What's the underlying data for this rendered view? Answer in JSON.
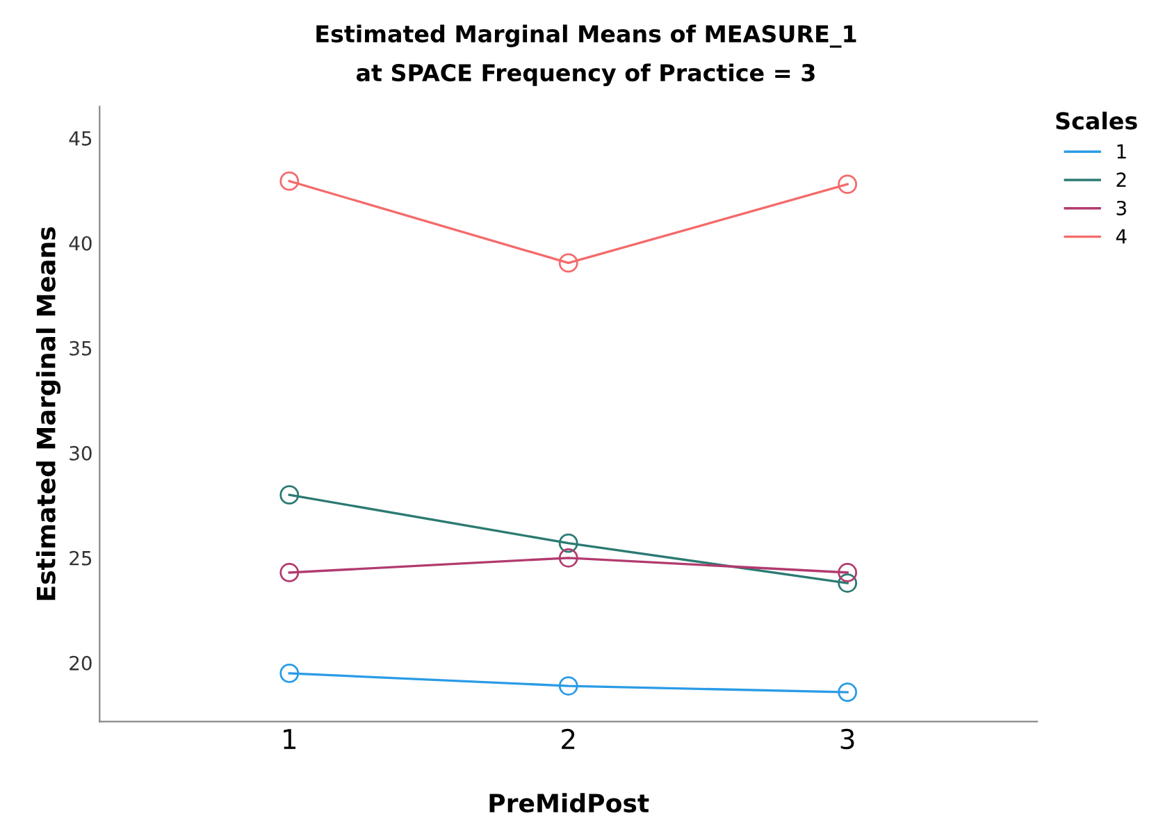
{
  "chart_data": {
    "type": "line",
    "title": "Estimated Marginal Means of MEASURE_1\nat SPACE Frequency of Practice = 3",
    "xlabel": "PreMidPost",
    "ylabel": "Estimated Marginal Means",
    "legend_title": "Scales",
    "categories": [
      "1",
      "2",
      "3"
    ],
    "series": [
      {
        "name": "1",
        "color": "#2a9be6",
        "values": [
          19.5,
          18.9,
          18.6
        ]
      },
      {
        "name": "2",
        "color": "#2b7a72",
        "values": [
          28.0,
          25.7,
          23.8
        ]
      },
      {
        "name": "3",
        "color": "#b23a6e",
        "values": [
          24.3,
          25.0,
          24.3
        ]
      },
      {
        "name": "4",
        "color": "#f46b6b",
        "values": [
          42.95,
          39.05,
          42.8
        ]
      }
    ],
    "ylim": [
      17.2,
      46.5
    ],
    "yticks": [
      20,
      25,
      30,
      35,
      40,
      45
    ],
    "grid": false,
    "legend": "top right",
    "marker": "circle",
    "line_style": "solid"
  }
}
